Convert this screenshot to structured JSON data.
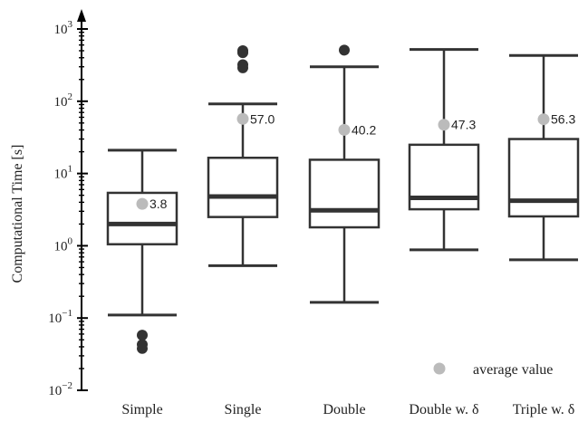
{
  "chart_data": {
    "type": "box",
    "ylabel": "Computational Time [s]",
    "yscale": "log",
    "ylim": [
      0.01,
      1000
    ],
    "yticks": [
      {
        "value": 0.01,
        "base": "10",
        "exp": "−2"
      },
      {
        "value": 0.1,
        "base": "10",
        "exp": "−1"
      },
      {
        "value": 1,
        "base": "10",
        "exp": "0"
      },
      {
        "value": 10,
        "base": "10",
        "exp": "1"
      },
      {
        "value": 100,
        "base": "10",
        "exp": "2"
      },
      {
        "value": 1000,
        "base": "10",
        "exp": "3"
      }
    ],
    "categories": [
      "Simple",
      "Single",
      "Double",
      "Double w. δ",
      "Triple w. δ"
    ],
    "boxes": [
      {
        "whisker_low": 0.11,
        "q1": 1.05,
        "median": 2.0,
        "q3": 5.4,
        "whisker_high": 21,
        "mean": 3.8,
        "mean_label": "3.8",
        "outliers": [
          0.058,
          0.043,
          0.038
        ]
      },
      {
        "whisker_low": 0.53,
        "q1": 2.5,
        "median": 4.8,
        "q3": 16.5,
        "whisker_high": 92,
        "mean": 57.0,
        "mean_label": "57.0",
        "outliers": [
          500,
          470,
          320,
          290
        ]
      },
      {
        "whisker_low": 0.165,
        "q1": 1.8,
        "median": 3.1,
        "q3": 15.5,
        "whisker_high": 300,
        "mean": 40.2,
        "mean_label": "40.2",
        "outliers": [
          510
        ]
      },
      {
        "whisker_low": 0.88,
        "q1": 3.2,
        "median": 4.6,
        "q3": 25,
        "whisker_high": 520,
        "mean": 47.3,
        "mean_label": "47.3",
        "outliers": []
      },
      {
        "whisker_low": 0.64,
        "q1": 2.55,
        "median": 4.2,
        "q3": 30,
        "whisker_high": 430,
        "mean": 56.3,
        "mean_label": "56.3",
        "outliers": []
      }
    ],
    "legend": {
      "label": "average value",
      "position": "bottom-right"
    },
    "colors": {
      "box": "#333333",
      "mean": "#bbbbbb",
      "outlier": "#333333"
    }
  }
}
